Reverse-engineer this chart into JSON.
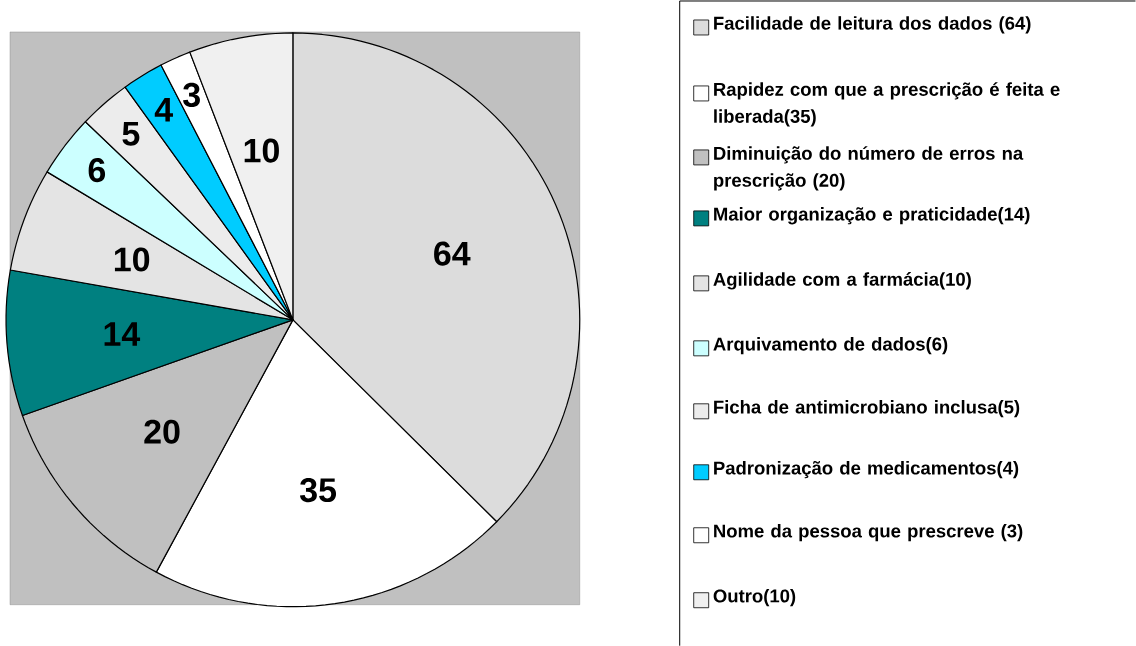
{
  "chart_data": {
    "type": "pie",
    "categories": [
      "Facilidade de leitura dos dados (64)",
      "Rapidez com que a prescrição é feita e liberada(35)",
      "Diminuição do número de erros na prescrição (20)",
      "Maior organização e praticidade(14)",
      "Agilidade com a farmácia(10)",
      "Arquivamento de dados(6)",
      "Ficha de antimicrobiano inclusa(5)",
      "Padronização de medicamentos(4)",
      "Nome da pessoa que prescreve (3)",
      "Outro(10)"
    ],
    "values": [
      64,
      35,
      20,
      14,
      10,
      6,
      5,
      4,
      3,
      10
    ],
    "colors": [
      "#dcdcdc",
      "#ffffff",
      "#c0c0c0",
      "#008080",
      "#e4e4e4",
      "#ccffff",
      "#ececec",
      "#00ccff",
      "#ffffff",
      "#f0f0f0"
    ],
    "data_labels": true,
    "legend": "right"
  }
}
